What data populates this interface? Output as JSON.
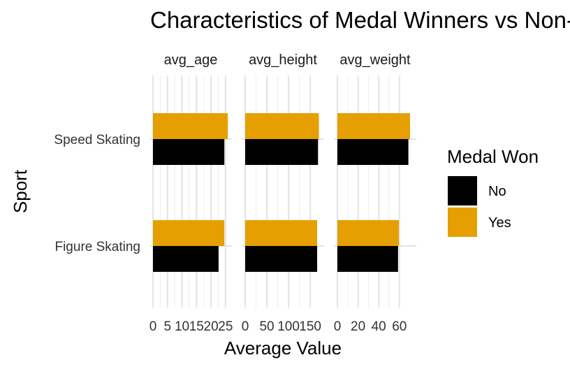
{
  "chart_data": {
    "type": "bar",
    "orientation": "horizontal",
    "title": "Characteristics of Medal Winners vs Non-Medal Winners",
    "xlabel": "Average Value",
    "ylabel": "Sport",
    "categories": [
      "Speed Skating",
      "Figure Skating"
    ],
    "facets": [
      {
        "strip_label": "avg_age",
        "xlim": [
          0,
          26
        ],
        "x_ticks": [
          0,
          5,
          10,
          15,
          20,
          25
        ],
        "x_tick_labels": [
          "0",
          "5",
          "10",
          "15",
          "20",
          "25"
        ],
        "series": [
          {
            "name": "No",
            "values": [
              24.6,
              22.6
            ]
          },
          {
            "name": "Yes",
            "values": [
              25.8,
              24.6
            ]
          }
        ]
      },
      {
        "strip_label": "avg_height",
        "xlim": [
          0,
          174
        ],
        "x_ticks": [
          0,
          50,
          100,
          150
        ],
        "x_tick_labels": [
          "0",
          "50",
          "100",
          "150"
        ],
        "series": [
          {
            "name": "No",
            "values": [
              168,
              166
            ]
          },
          {
            "name": "Yes",
            "values": [
              170,
              166
            ]
          }
        ]
      },
      {
        "strip_label": "avg_weight",
        "xlim": [
          0,
          73
        ],
        "x_ticks": [
          0,
          20,
          40,
          60
        ],
        "x_tick_labels": [
          "0",
          "20",
          "40",
          "60"
        ],
        "series": [
          {
            "name": "No",
            "values": [
              68.7,
              58.7
            ]
          },
          {
            "name": "Yes",
            "values": [
              70.3,
              59.5
            ]
          }
        ]
      }
    ],
    "legend": {
      "title": "Medal Won",
      "position": "right",
      "entries": [
        {
          "label": "No",
          "color": "#000000"
        },
        {
          "label": "Yes",
          "color": "#E69F00"
        }
      ]
    },
    "grid": true
  }
}
